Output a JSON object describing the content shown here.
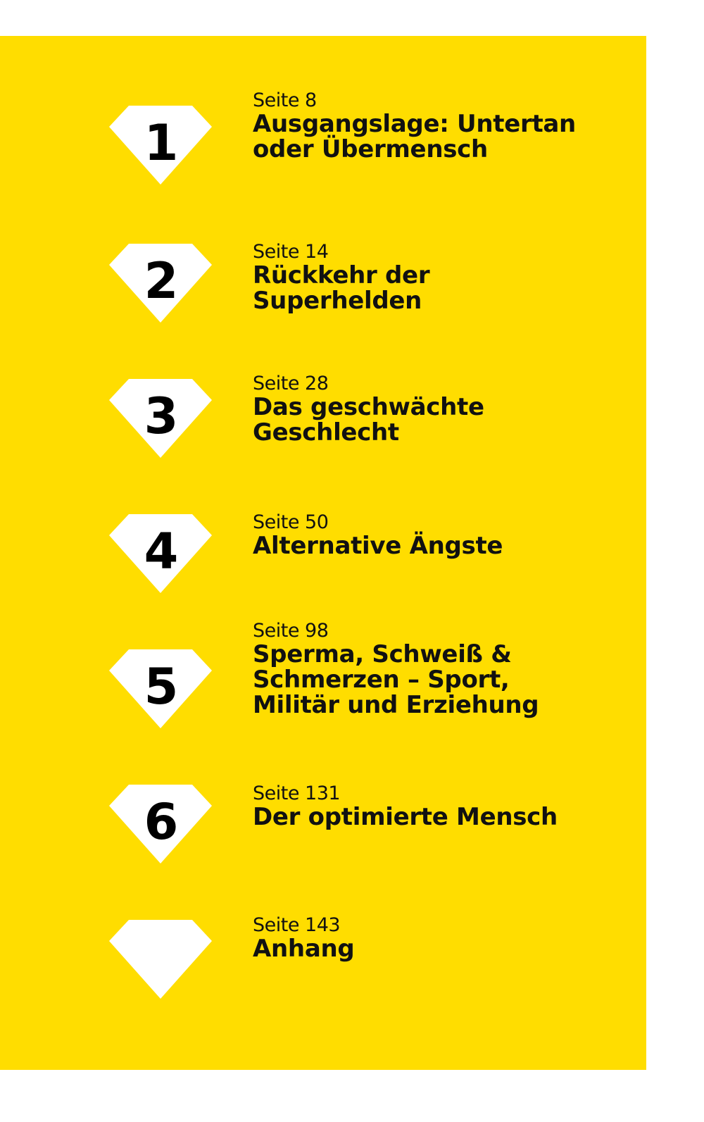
{
  "toc": {
    "entries": [
      {
        "number": "1",
        "page": "Seite 8",
        "title": "Ausgangslage: Untertan\noder Übermensch"
      },
      {
        "number": "2",
        "page": "Seite 14",
        "title": "Rückkehr der\nSuperhelden"
      },
      {
        "number": "3",
        "page": "Seite 28",
        "title": "Das geschwächte\nGeschlecht"
      },
      {
        "number": "4",
        "page": "Seite 50",
        "title": "Alternative Ängste"
      },
      {
        "number": "5",
        "page": "Seite 98",
        "title": "Sperma, Schweiß &\nSchmerzen – Sport,\nMilitär und Erziehung"
      },
      {
        "number": "6",
        "page": "Seite 131",
        "title": "Der optimierte Mensch"
      },
      {
        "number": "",
        "page": "Seite 143",
        "title": "Anhang"
      }
    ]
  },
  "colors": {
    "panel": "#FFDD00",
    "diamond": "#FFFFFF",
    "text": "#111111"
  },
  "icons": {
    "diamond": "diamond-icon"
  }
}
